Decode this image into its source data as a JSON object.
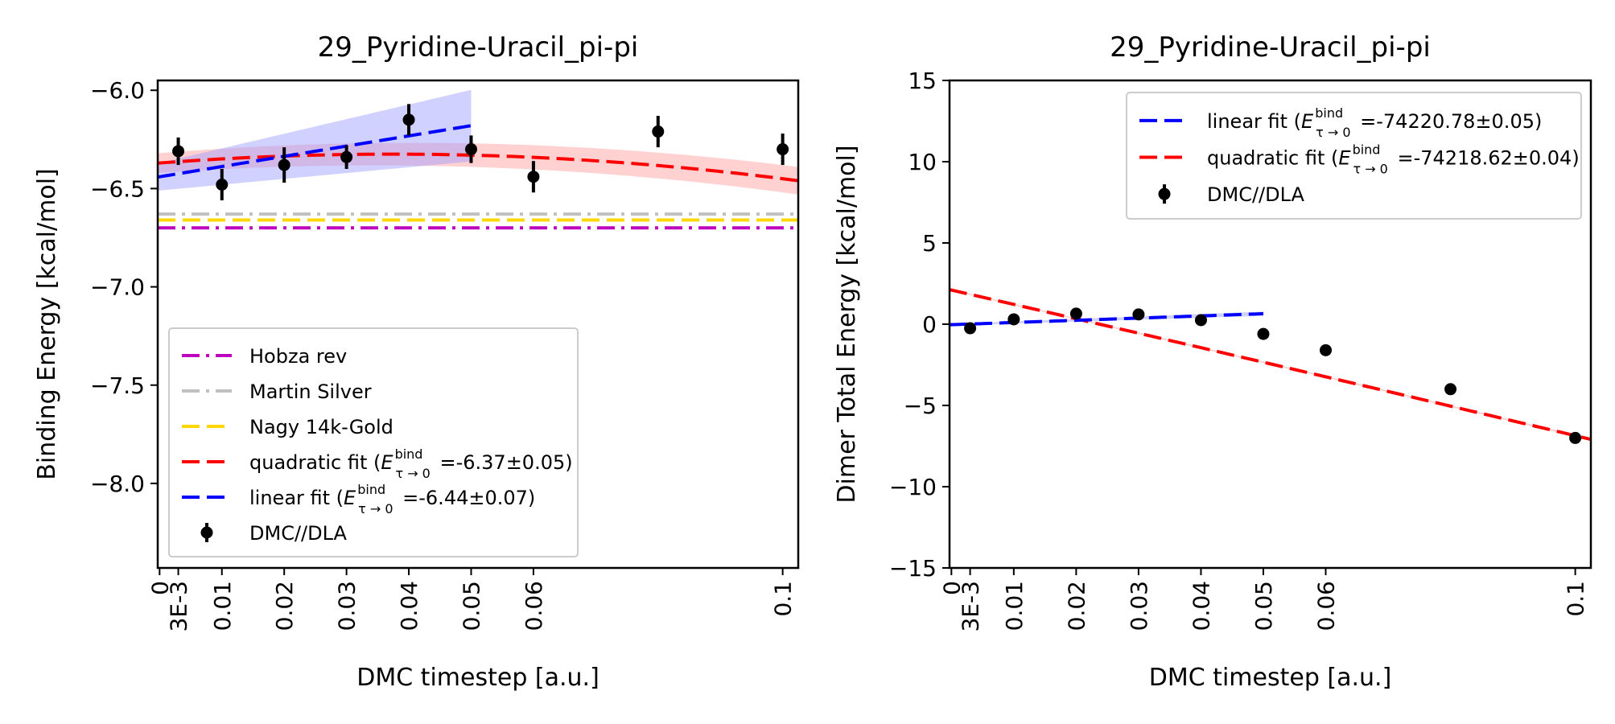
{
  "chart_data": [
    {
      "type": "scatter",
      "title": "29_Pyridine-Uracil_pi-pi",
      "xlabel": "DMC timestep [a.u.]",
      "ylabel": "Binding Energy [kcal/mol]",
      "xlim": [
        -0.0003,
        0.1025
      ],
      "ylim": [
        -8.43,
        -5.95
      ],
      "xticks": [
        {
          "value": 0,
          "label": "0"
        },
        {
          "value": 0.003,
          "label": "3E-3"
        },
        {
          "value": 0.01,
          "label": "0.01"
        },
        {
          "value": 0.02,
          "label": "0.02"
        },
        {
          "value": 0.03,
          "label": "0.03"
        },
        {
          "value": 0.04,
          "label": "0.04"
        },
        {
          "value": 0.05,
          "label": "0.05"
        },
        {
          "value": 0.06,
          "label": "0.06"
        },
        {
          "value": 0.1,
          "label": "0.1"
        }
      ],
      "yticks": [
        {
          "value": -6.0,
          "label": "−6.0"
        },
        {
          "value": -6.5,
          "label": "−6.5"
        },
        {
          "value": -7.0,
          "label": "−7.0"
        },
        {
          "value": -7.5,
          "label": "−7.5"
        },
        {
          "value": -8.0,
          "label": "−8.0"
        }
      ],
      "points": {
        "name": "DMC//DLA",
        "color": "#000000",
        "x": [
          0.003,
          0.01,
          0.02,
          0.03,
          0.04,
          0.05,
          0.06,
          0.08,
          0.1
        ],
        "y": [
          -6.31,
          -6.48,
          -6.38,
          -6.34,
          -6.15,
          -6.3,
          -6.44,
          -6.21,
          -6.3
        ],
        "err": [
          0.07,
          0.08,
          0.09,
          0.06,
          0.08,
          0.07,
          0.08,
          0.08,
          0.08
        ]
      },
      "hlines": [
        {
          "name": "Hobza rev",
          "value": -6.7,
          "color": "#bf00bf",
          "style": "dashdot"
        },
        {
          "name": "Martin Silver",
          "value": -6.63,
          "color": "#c0c0c0",
          "style": "dashdot"
        },
        {
          "name": "Nagy 14k-Gold",
          "value": -6.66,
          "color": "#ffd700",
          "style": "dashed"
        }
      ],
      "fits": [
        {
          "name": "quadratic fit",
          "kind": "quadratic",
          "coeffs": [
            -6.37,
            2.4,
            -32
          ],
          "band": 0.05,
          "x_range": [
            -0.0003,
            0.1025
          ],
          "color": "#ff0000",
          "band_color": "#ff9a9a"
        },
        {
          "name": "linear fit",
          "kind": "linear",
          "coeffs": [
            -6.44,
            5.2
          ],
          "band": 0.07,
          "x_range": [
            -0.0003,
            0.05
          ],
          "color": "#0000ff",
          "band_color": "#9a9aff"
        }
      ],
      "legend": {
        "placement": "lower-left",
        "entries": [
          {
            "kind": "dashdot",
            "color": "#bf00bf",
            "label": "Hobza rev"
          },
          {
            "kind": "dashdot",
            "color": "#c0c0c0",
            "label": "Martin Silver"
          },
          {
            "kind": "dashed",
            "color": "#ffd700",
            "label": "Nagy 14k-Gold"
          },
          {
            "kind": "dashed",
            "color": "#ff0000",
            "label_pre": "quadratic fit (",
            "sym": "E",
            "sup": "bind",
            "sub": "τ → 0",
            "label_post": " =-6.37±0.05)"
          },
          {
            "kind": "dashed",
            "color": "#0000ff",
            "label_pre": "linear fit (",
            "sym": "E",
            "sup": "bind",
            "sub": "τ → 0",
            "label_post": " =-6.44±0.07)"
          },
          {
            "kind": "errorbar",
            "color": "#000000",
            "label": "DMC//DLA"
          }
        ]
      }
    },
    {
      "type": "scatter",
      "title": "29_Pyridine-Uracil_pi-pi",
      "xlabel": "DMC timestep [a.u.]",
      "ylabel": "Dimer Total Energy [kcal/mol]",
      "xlim": [
        -0.0003,
        0.1025
      ],
      "ylim": [
        -15,
        15
      ],
      "xticks": [
        {
          "value": 0,
          "label": "0"
        },
        {
          "value": 0.003,
          "label": "3E-3"
        },
        {
          "value": 0.01,
          "label": "0.01"
        },
        {
          "value": 0.02,
          "label": "0.02"
        },
        {
          "value": 0.03,
          "label": "0.03"
        },
        {
          "value": 0.04,
          "label": "0.04"
        },
        {
          "value": 0.05,
          "label": "0.05"
        },
        {
          "value": 0.06,
          "label": "0.06"
        },
        {
          "value": 0.1,
          "label": "0.1"
        }
      ],
      "yticks": [
        {
          "value": 15,
          "label": "15"
        },
        {
          "value": 10,
          "label": "10"
        },
        {
          "value": 5,
          "label": "5"
        },
        {
          "value": 0,
          "label": "0"
        },
        {
          "value": -5,
          "label": "−5"
        },
        {
          "value": -10,
          "label": "−10"
        },
        {
          "value": -15,
          "label": "−15"
        }
      ],
      "points": {
        "name": "DMC//DLA",
        "color": "#000000",
        "x": [
          0.003,
          0.01,
          0.02,
          0.03,
          0.04,
          0.05,
          0.06,
          0.08,
          0.1
        ],
        "y": [
          -0.25,
          0.3,
          0.65,
          0.6,
          0.25,
          -0.6,
          -1.6,
          -4.0,
          -7.0
        ],
        "err": [
          0,
          0,
          0,
          0,
          0,
          0,
          0,
          0,
          0
        ]
      },
      "hlines": [],
      "fits": [
        {
          "name": "quadratic fit",
          "kind": "quadratic",
          "coeffs": [
            2.1,
            -88,
            -16
          ],
          "band": 0.04,
          "x_range": [
            -0.0003,
            0.1025
          ],
          "color": "#ff0000",
          "band_color": "#ff9a9a"
        },
        {
          "name": "linear fit",
          "kind": "linear",
          "coeffs": [
            -0.03,
            13.5
          ],
          "band": 0.05,
          "x_range": [
            -0.0003,
            0.05
          ],
          "color": "#0000ff",
          "band_color": "#9a9aff"
        }
      ],
      "legend": {
        "placement": "upper-right",
        "entries": [
          {
            "kind": "dashed",
            "color": "#0000ff",
            "label_pre": "linear fit (",
            "sym": "E",
            "sup": "bind",
            "sub": "τ → 0",
            "label_post": " =-74220.78±0.05)"
          },
          {
            "kind": "dashed",
            "color": "#ff0000",
            "label_pre": "quadratic fit (",
            "sym": "E",
            "sup": "bind",
            "sub": "τ → 0",
            "label_post": " =-74218.62±0.04)"
          },
          {
            "kind": "errorbar",
            "color": "#000000",
            "label": "DMC//DLA"
          }
        ]
      }
    }
  ]
}
